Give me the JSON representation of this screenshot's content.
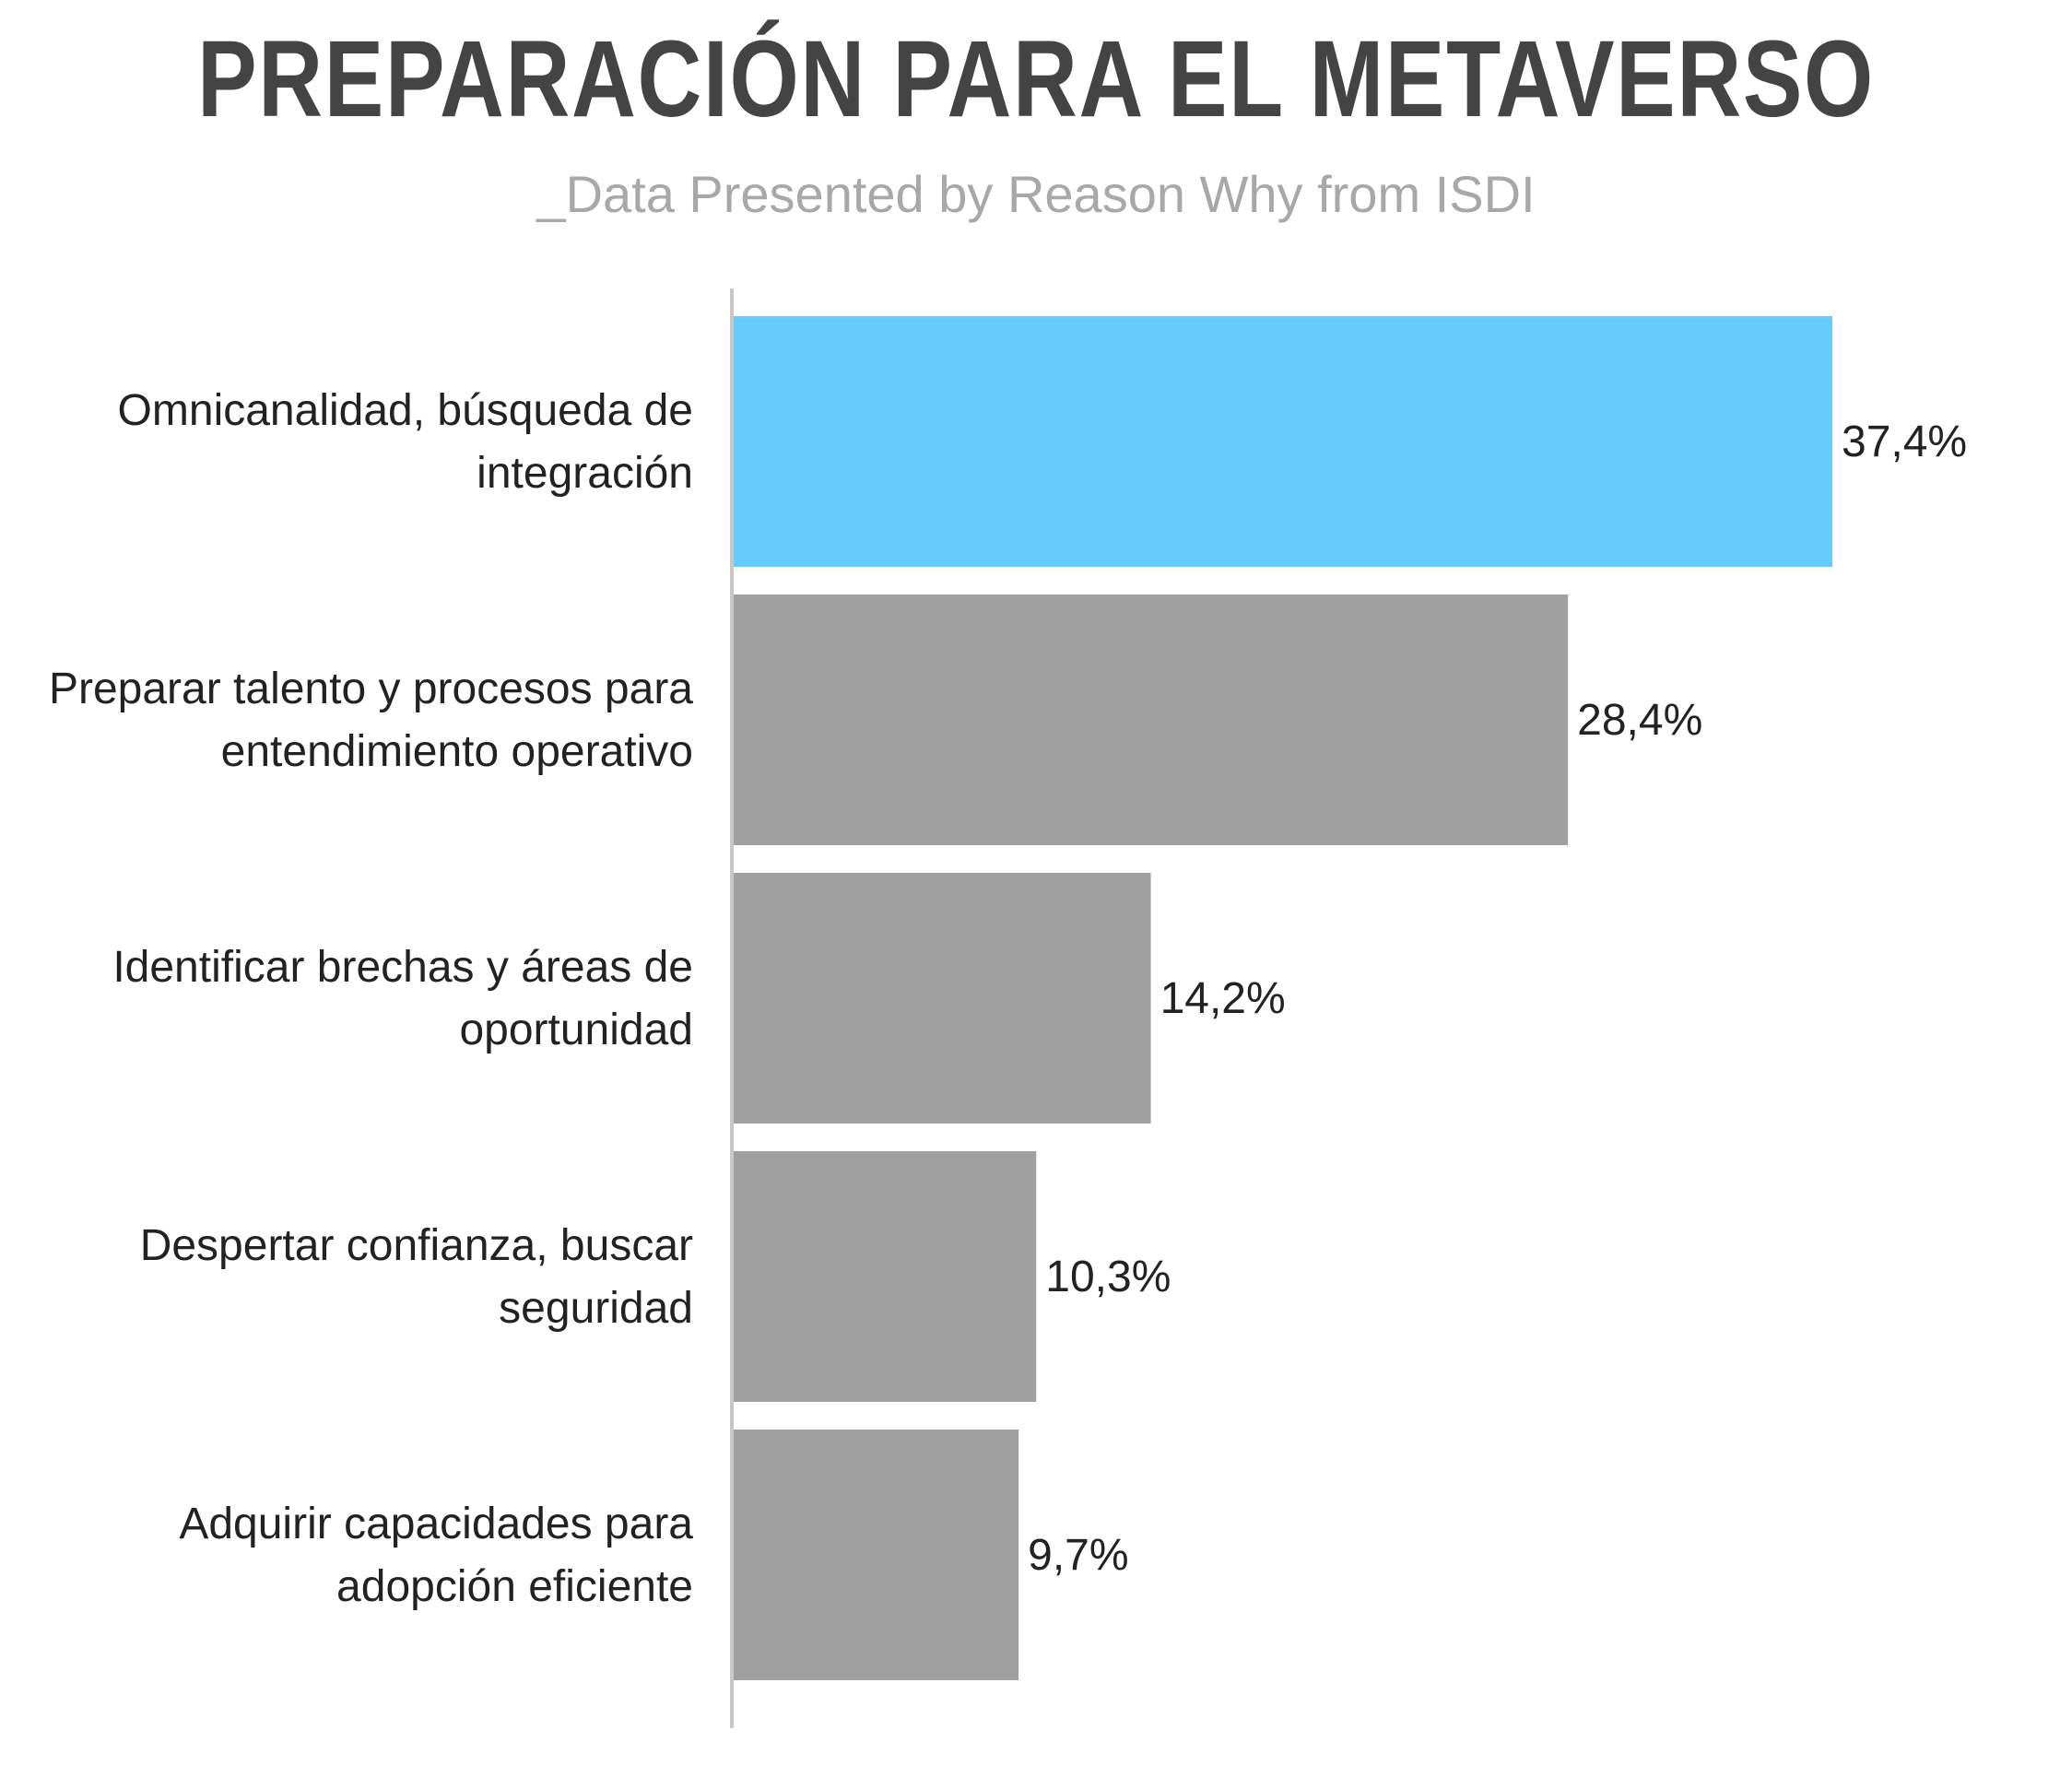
{
  "title": "PREPARACIÓN PARA EL METAVERSO",
  "subtitle": "_Data Presented by Reason Why from ISDI",
  "chart_data": {
    "type": "bar",
    "orientation": "horizontal",
    "categories": [
      "Omnicanalidad, búsqueda de integración",
      "Preparar talento y procesos para entendimiento operativo",
      "Identificar brechas y áreas de oportunidad",
      "Despertar confianza, buscar seguridad",
      "Adquirir capacidades para adopción eficiente"
    ],
    "category_lines": [
      [
        "Omnicanalidad, búsqueda de",
        "integración"
      ],
      [
        "Preparar talento y procesos para",
        "entendimiento operativo"
      ],
      [
        "Identificar brechas y áreas de",
        "oportunidad"
      ],
      [
        "Despertar confianza, buscar",
        "seguridad"
      ],
      [
        "Adquirir capacidades para",
        "adopción eficiente"
      ]
    ],
    "values": [
      37.4,
      28.4,
      14.2,
      10.3,
      9.7
    ],
    "value_labels": [
      "37,4%",
      "28,4%",
      "14,2%",
      "10,3%",
      "9,7%"
    ],
    "unit": "%",
    "highlight_index": 0,
    "colors": {
      "highlight": "#66CCFF",
      "default": "#A0A0A0",
      "axis": "#C8C8C8"
    },
    "xlim": [
      0,
      37.4
    ],
    "grid": false,
    "legend": "none"
  }
}
